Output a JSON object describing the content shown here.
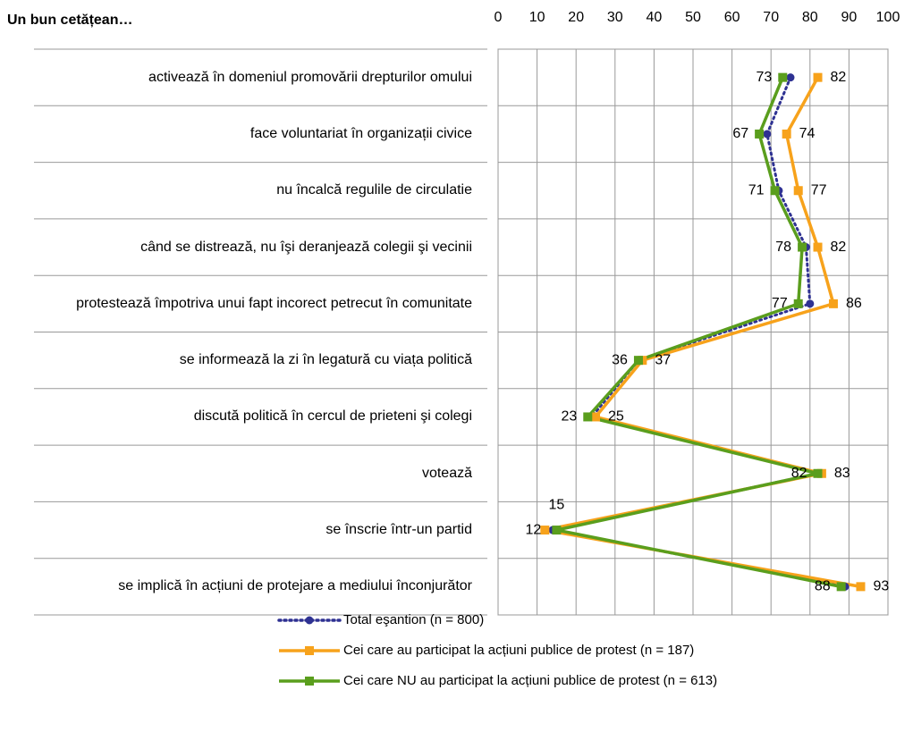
{
  "chart_data": {
    "type": "line",
    "orientation": "horizontal",
    "title": "Un  bun cetățean…",
    "categories": [
      "activează în domeniul promovării drepturilor omului",
      "face voluntariat în organizații civice",
      "nu încalcă regulile de circulatie",
      "când se distrează, nu îşi deranjează colegii şi vecinii",
      "protestează împotriva unui fapt incorect petrecut în comunitate",
      "se informează la zi  în legatură cu viața politică",
      "discută politică în cercul de prieteni şi colegi",
      "votează",
      "se înscrie într-un partid",
      "se implică în acțiuni de protejare a mediului înconjurător"
    ],
    "series": [
      {
        "name": "Total eşantion  (n = 800)",
        "color": "#2e3192",
        "marker": "circle",
        "dash": "dotted",
        "labels": false,
        "values": [
          75,
          69,
          72,
          79,
          80,
          36,
          24,
          82,
          14,
          89
        ]
      },
      {
        "name": "Cei care au participat la acțiuni publice de protest (n = 187)",
        "color": "#f7a21b",
        "marker": "square",
        "labels": true,
        "values": [
          82,
          74,
          77,
          82,
          86,
          37,
          25,
          83,
          12,
          93
        ]
      },
      {
        "name": "Cei care NU au participat la acțiuni publice de protest (n = 613)",
        "color": "#5a9e1d",
        "marker": "square",
        "labels": true,
        "values": [
          73,
          67,
          71,
          78,
          77,
          36,
          23,
          82,
          15,
          88
        ]
      }
    ],
    "xlim": [
      0,
      100
    ],
    "xticks": [
      0,
      10,
      20,
      30,
      40,
      50,
      60,
      70,
      80,
      90,
      100
    ],
    "grid": true,
    "legend": "bottom"
  }
}
